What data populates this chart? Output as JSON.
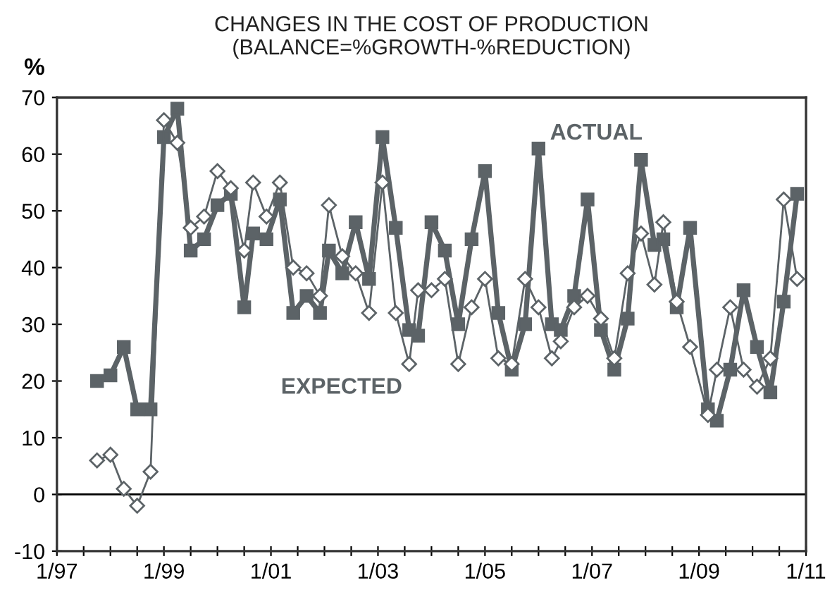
{
  "chart_data": {
    "type": "line",
    "title": "CHANGES IN THE COST OF PRODUCTION\n(BALANCE=%GROWTH-%REDUCTION)",
    "ylabel": "%",
    "x": [
      "1997-10",
      "1998-01",
      "1998-04",
      "1998-07",
      "1998-10",
      "1999-01",
      "1999-04",
      "1999-07",
      "1999-10",
      "2000-01",
      "2000-04",
      "2000-07",
      "2000-09",
      "2000-12",
      "2001-03",
      "2001-06",
      "2001-09",
      "2001-12",
      "2002-02",
      "2002-05",
      "2002-08",
      "2002-11",
      "2003-02",
      "2003-05",
      "2003-08",
      "2003-10",
      "2004-01",
      "2004-04",
      "2004-07",
      "2004-10",
      "2005-01",
      "2005-04",
      "2005-07",
      "2005-10",
      "2006-01",
      "2006-04",
      "2006-06",
      "2006-09",
      "2006-12",
      "2007-03",
      "2007-06",
      "2007-09",
      "2007-12",
      "2008-03",
      "2008-05",
      "2008-08",
      "2008-11",
      "2009-03",
      "2009-05",
      "2009-08",
      "2009-11",
      "2010-02",
      "2010-05",
      "2010-08",
      "2010-11"
    ],
    "series": [
      {
        "name": "ACTUAL",
        "color": "#5c6367",
        "marker": "square",
        "values": [
          20,
          21,
          26,
          15,
          15,
          63,
          68,
          43,
          45,
          51,
          53,
          33,
          46,
          45,
          52,
          32,
          35,
          32,
          43,
          39,
          48,
          38,
          63,
          47,
          29,
          28,
          48,
          43,
          30,
          45,
          57,
          32,
          22,
          30,
          61,
          30,
          29,
          35,
          52,
          29,
          22,
          31,
          59,
          44,
          45,
          33,
          47,
          15,
          13,
          22,
          36,
          26,
          18,
          34,
          53
        ]
      },
      {
        "name": "EXPECTED",
        "color": "#5c6367",
        "marker": "diamond",
        "values": [
          6,
          7,
          1,
          -2,
          4,
          66,
          62,
          47,
          49,
          57,
          54,
          43,
          55,
          49,
          55,
          40,
          39,
          35,
          51,
          42,
          39,
          32,
          55,
          32,
          23,
          36,
          36,
          38,
          23,
          33,
          38,
          24,
          23,
          38,
          33,
          24,
          27,
          33,
          35,
          31,
          24,
          39,
          46,
          37,
          48,
          34,
          26,
          14,
          22,
          33,
          22,
          19,
          24,
          52,
          38
        ]
      }
    ],
    "xlim": [
      "1997-01",
      "2011-01"
    ],
    "xticks": [
      {
        "value": "1997-01",
        "label": "1/97"
      },
      {
        "value": "1997-07",
        "label": null
      },
      {
        "value": "1998-01",
        "label": null
      },
      {
        "value": "1998-07",
        "label": null
      },
      {
        "value": "1999-01",
        "label": "1/99"
      },
      {
        "value": "1999-07",
        "label": null
      },
      {
        "value": "2000-01",
        "label": null
      },
      {
        "value": "2000-07",
        "label": null
      },
      {
        "value": "2001-01",
        "label": "1/01"
      },
      {
        "value": "2001-07",
        "label": null
      },
      {
        "value": "2002-01",
        "label": null
      },
      {
        "value": "2002-07",
        "label": null
      },
      {
        "value": "2003-01",
        "label": "1/03"
      },
      {
        "value": "2003-07",
        "label": null
      },
      {
        "value": "2004-01",
        "label": null
      },
      {
        "value": "2004-07",
        "label": null
      },
      {
        "value": "2005-01",
        "label": "1/05"
      },
      {
        "value": "2005-07",
        "label": null
      },
      {
        "value": "2006-01",
        "label": null
      },
      {
        "value": "2006-07",
        "label": null
      },
      {
        "value": "2007-01",
        "label": "1/07"
      },
      {
        "value": "2007-07",
        "label": null
      },
      {
        "value": "2008-01",
        "label": null
      },
      {
        "value": "2008-07",
        "label": null
      },
      {
        "value": "2009-01",
        "label": "1/09"
      },
      {
        "value": "2009-07",
        "label": null
      },
      {
        "value": "2010-01",
        "label": null
      },
      {
        "value": "2010-07",
        "label": null
      },
      {
        "value": "2011-01",
        "label": "1/11"
      }
    ],
    "ylim": [
      -10,
      70
    ],
    "yticks": [
      -10,
      0,
      10,
      20,
      30,
      40,
      50,
      60,
      70
    ],
    "ref_lines": [
      {
        "axis": "y",
        "value": 0,
        "color": "#000000"
      }
    ],
    "grid": false,
    "legend": false
  }
}
